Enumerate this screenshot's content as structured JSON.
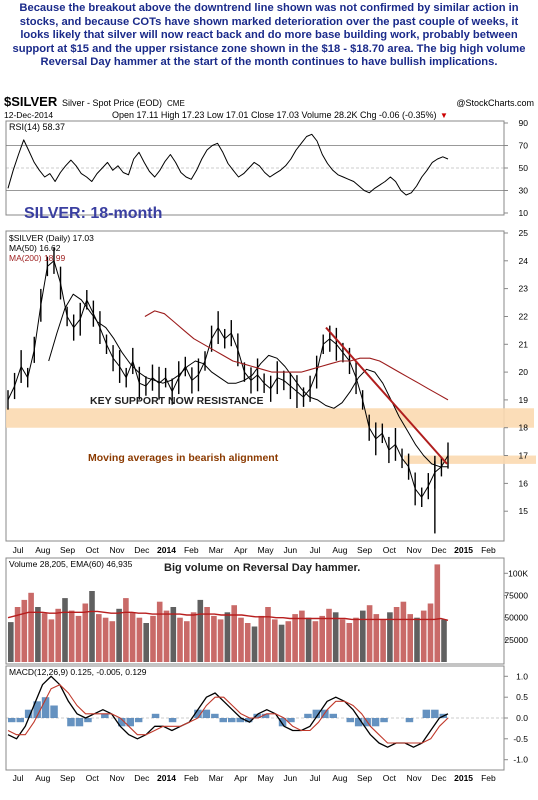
{
  "commentary": "Because the breakout above the downtrend line shown was not confirmed by similar action in stocks, and because COTs have shown marked deterioration over the past couple of weeks, it looks likely that silver will now react back and do more base building work, probably between support at $15 and the upper rsistance zone shown in the $18 - $18.70 area. The big high volume Reversal Day hammer at the start of the month continues to have bullish implications.",
  "header": {
    "symbol": "$SILVER",
    "name": "Silver - Spot Price (EOD)",
    "exchange": "CME",
    "copyright": "@StockCharts.com",
    "date": "12-Dec-2014",
    "quote": "Open 17.11  High 17.23  Low 17.01  Close 17.03  Volume 28.2K  Chg -0.06 (-0.35%)",
    "quote_arrow": "▼"
  },
  "colors": {
    "price": "#000000",
    "ma50": "#000000",
    "ma200": "#9c1c1c",
    "volume": "#c0504d",
    "volume_bar": "#555555",
    "macd_hist": "#4a7fb5",
    "highlight": "#fbd9b0",
    "title": "#3a3fa0",
    "text_accent": "#8b3a00"
  },
  "annotations": {
    "title": "SILVER: 18-month",
    "support": "KEY SUPPORT NOW RESISTANCE",
    "ma_note": "Moving averages in bearish alignment",
    "volume_note": "Big volume on Reversal Day hammer."
  },
  "chart_data": [
    {
      "type": "line",
      "title": "RSI(14) 58.37",
      "ylim": [
        10,
        90
      ],
      "ticks": [
        "90",
        "70",
        "50",
        "30",
        "10"
      ],
      "levels": [
        70,
        30
      ],
      "series": [
        {
          "name": "RSI(14) 58.37",
          "values": [
            32,
            48,
            62,
            75,
            65,
            55,
            48,
            42,
            45,
            38,
            46,
            52,
            57,
            52,
            45,
            42,
            38,
            45,
            50,
            55,
            48,
            52,
            46,
            44,
            58,
            64,
            55,
            47,
            42,
            48,
            56,
            62,
            55,
            46,
            42,
            40,
            48,
            58,
            66,
            70,
            72,
            64,
            54,
            48,
            42,
            45,
            50,
            55,
            52,
            46,
            42,
            45,
            48,
            52,
            58,
            66,
            72,
            78,
            80,
            74,
            62,
            54,
            48,
            44,
            42,
            40,
            38,
            34,
            30,
            28,
            32,
            35,
            38,
            42,
            38,
            30,
            26,
            28,
            34,
            42,
            48,
            55,
            58,
            60,
            58
          ]
        }
      ]
    },
    {
      "type": "line",
      "title": "$SILVER (Daily) 17.03",
      "ylim": [
        14,
        25
      ],
      "ticks": [
        "25",
        "24",
        "23",
        "22",
        "21",
        "20",
        "19",
        "18",
        "17",
        "16",
        "15"
      ],
      "xticks": [
        "Jul",
        "Aug",
        "Sep",
        "Oct",
        "Nov",
        "Dec",
        "2014",
        "Feb",
        "Mar",
        "Apr",
        "May",
        "Jun",
        "Jul",
        "Aug",
        "Sep",
        "Oct",
        "Nov",
        "Dec",
        "2015",
        "Feb"
      ],
      "series": [
        {
          "name": "$SILVER (Daily) 17.03",
          "values": [
            19.0,
            19.5,
            20.2,
            19.8,
            20.8,
            22.4,
            23.8,
            24.0,
            23.2,
            22.0,
            21.6,
            21.9,
            22.6,
            22.1,
            21.6,
            21.0,
            20.5,
            20.2,
            19.8,
            20.4,
            19.6,
            19.5,
            19.8,
            19.6,
            19.8,
            19.3,
            19.8,
            20.2,
            19.7,
            19.9,
            20.4,
            21.2,
            21.6,
            21.2,
            21.4,
            20.8,
            20.0,
            19.7,
            19.9,
            19.6,
            19.4,
            19.8,
            19.7,
            19.5,
            19.3,
            19.1,
            19.4,
            20.0,
            21.0,
            21.2,
            21.0,
            20.7,
            20.4,
            19.8,
            19.0,
            18.0,
            17.6,
            17.8,
            17.2,
            17.4,
            16.9,
            16.6,
            15.8,
            15.5,
            15.9,
            16.4,
            16.6,
            17.0
          ]
        },
        {
          "name": "MA(50) 16.62",
          "values": [
            null,
            null,
            null,
            null,
            null,
            20.4,
            21.4,
            22.3,
            22.8,
            22.6,
            22.2,
            21.8,
            21.6,
            21.2,
            20.7,
            20.3,
            20.0,
            19.8,
            19.7,
            19.6,
            19.7,
            19.9,
            20.2,
            20.4,
            20.3,
            20.0,
            19.8,
            19.6,
            19.6,
            19.7,
            19.9,
            20.3,
            20.6,
            20.5,
            20.2,
            19.8,
            19.4,
            19.1,
            19.0,
            18.8,
            18.7,
            18.9,
            19.3,
            19.8,
            20.1,
            20.0,
            19.6,
            19.0,
            18.4,
            17.9,
            17.4,
            17.0,
            16.7,
            16.6,
            16.6
          ]
        },
        {
          "name": "MA(200) 18.99",
          "values": [
            null,
            null,
            null,
            null,
            null,
            null,
            null,
            null,
            null,
            null,
            null,
            null,
            null,
            null,
            22.0,
            22.2,
            22.1,
            21.8,
            21.5,
            21.2,
            21.0,
            20.8,
            20.6,
            20.4,
            20.3,
            20.2,
            20.1,
            20.0,
            20.0,
            20.0,
            20.0,
            20.1,
            20.2,
            20.3,
            20.4,
            20.4,
            20.5,
            20.5,
            20.4,
            20.2,
            20.0,
            19.8,
            19.6,
            19.4,
            19.2,
            19.0
          ]
        }
      ],
      "support_zone": [
        18.0,
        18.7
      ],
      "resistance_zone": [
        16.7,
        17.0
      ],
      "trendline": [
        [
          21.6,
          "Jul"
        ],
        [
          16.7,
          "Dec"
        ]
      ]
    },
    {
      "type": "bar",
      "title": "Volume 28,205, EMA(60) 46,935",
      "ylim": [
        0,
        115000
      ],
      "ticks": [
        "100K",
        "75000",
        "50000",
        "25000"
      ],
      "series": [
        {
          "name": "Volume 28,205",
          "values": [
            45,
            62,
            70,
            78,
            62,
            55,
            48,
            60,
            72,
            58,
            52,
            66,
            80,
            54,
            50,
            46,
            60,
            72,
            56,
            50,
            44,
            52,
            68,
            58,
            62,
            50,
            46,
            56,
            70,
            62,
            52,
            48,
            56,
            64,
            50,
            44,
            40,
            52,
            62,
            48,
            42,
            46,
            54,
            58,
            50,
            46,
            52,
            60,
            56,
            48,
            44,
            50,
            58,
            64,
            54,
            48,
            56,
            62,
            68,
            54,
            50,
            58,
            66,
            110,
            48
          ]
        },
        {
          "name": "EMA(60) 46,935",
          "values": [
            50,
            52,
            54,
            56,
            56,
            56,
            55,
            55,
            56,
            56,
            56,
            56,
            57,
            57,
            56,
            55,
            55,
            56,
            56,
            55,
            55,
            54,
            54,
            54,
            54,
            54,
            53,
            53,
            54,
            54,
            54,
            53,
            53,
            53,
            53,
            52,
            51,
            51,
            51,
            50,
            50,
            49,
            49,
            49,
            49,
            49,
            49,
            49,
            49,
            49,
            48,
            48,
            48,
            48,
            48,
            48,
            48,
            48,
            48,
            48,
            48,
            48,
            48,
            49,
            47
          ]
        }
      ]
    },
    {
      "type": "line",
      "title": "MACD(12,26,9) 0.125, -0.005, 0.129",
      "ylim": [
        -1.2,
        1.2
      ],
      "ticks": [
        "1.0",
        "0.5",
        "0.0",
        "-0.5",
        "-1.0"
      ],
      "series": [
        {
          "name": "MACD(12,26,9) 0.125",
          "values": [
            -0.4,
            -0.5,
            -0.2,
            0.3,
            0.8,
            1.0,
            0.8,
            0.4,
            0.1,
            0.0,
            0.1,
            0.2,
            0.1,
            -0.2,
            -0.4,
            -0.5,
            -0.4,
            -0.2,
            -0.2,
            -0.3,
            -0.2,
            -0.1,
            0.2,
            0.5,
            0.6,
            0.4,
            0.2,
            0.0,
            -0.1,
            0.1,
            0.2,
            0.1,
            -0.2,
            -0.3,
            -0.3,
            -0.2,
            0.1,
            0.4,
            0.5,
            0.4,
            0.2,
            -0.1,
            -0.4,
            -0.6,
            -0.7,
            -0.6,
            -0.6,
            -0.7,
            -0.6,
            -0.3,
            0.0,
            0.1
          ]
        },
        {
          "name": "-0.005",
          "values": [
            -0.3,
            -0.4,
            -0.4,
            -0.1,
            0.3,
            0.7,
            0.8,
            0.6,
            0.3,
            0.1,
            0.1,
            0.1,
            0.1,
            0.0,
            -0.2,
            -0.4,
            -0.4,
            -0.3,
            -0.2,
            -0.2,
            -0.2,
            -0.1,
            0.0,
            0.3,
            0.5,
            0.5,
            0.3,
            0.1,
            0.0,
            0.0,
            0.1,
            0.1,
            0.0,
            -0.2,
            -0.3,
            -0.3,
            -0.1,
            0.2,
            0.4,
            0.4,
            0.3,
            0.1,
            -0.2,
            -0.4,
            -0.6,
            -0.6,
            -0.6,
            -0.6,
            -0.6,
            -0.5,
            -0.2,
            0.0
          ]
        },
        {
          "name": "0.129",
          "values": [
            -0.1,
            -0.1,
            0.2,
            0.4,
            0.5,
            0.3,
            0.0,
            -0.2,
            -0.2,
            -0.1,
            0.0,
            0.1,
            0.0,
            -0.2,
            -0.2,
            -0.1,
            0.0,
            0.1,
            0.0,
            -0.1,
            0.0,
            0.0,
            0.2,
            0.2,
            0.1,
            -0.1,
            -0.1,
            -0.1,
            -0.1,
            0.1,
            0.1,
            0.0,
            -0.2,
            -0.1,
            0.0,
            0.1,
            0.2,
            0.2,
            0.1,
            0.0,
            -0.1,
            -0.2,
            -0.2,
            -0.2,
            -0.1,
            0.0,
            0.0,
            -0.1,
            0.0,
            0.2,
            0.2,
            0.1
          ]
        }
      ]
    }
  ]
}
